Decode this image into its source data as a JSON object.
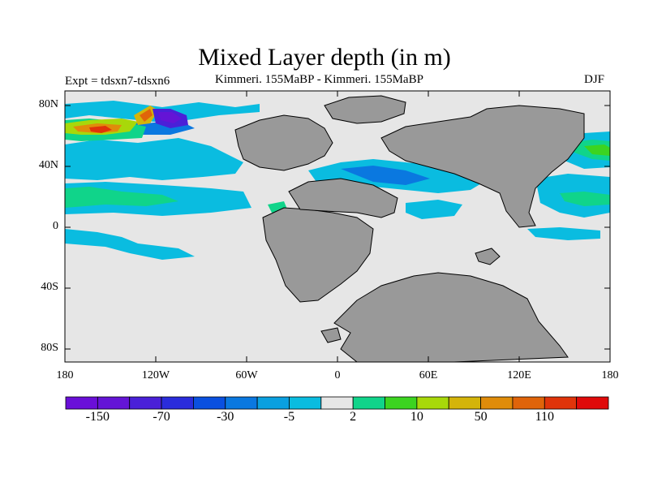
{
  "title": "Mixed Layer depth (in m)",
  "left_subtitle": "Expt = tdsxn7-tdsxn6",
  "center_subtitle": "Kimmeri. 155MaBP - Kimmeri. 155MaBP",
  "right_subtitle": "DJF",
  "y_ticks": [
    "80N",
    "40N",
    "0",
    "40S",
    "80S"
  ],
  "x_ticks": [
    "180",
    "120W",
    "60W",
    "0",
    "60E",
    "120E",
    "180"
  ],
  "colorbar": {
    "colors": [
      "#6a0fd8",
      "#6414d6",
      "#4a20d8",
      "#2a2cdc",
      "#0a50e0",
      "#0a78e0",
      "#0aa0e0",
      "#0abce0",
      "#e6e6e6",
      "#10d48a",
      "#3cd420",
      "#a8d80a",
      "#d4b40a",
      "#e08c0a",
      "#e0640a",
      "#e0340a",
      "#e00a0a"
    ],
    "labels": [
      "-150",
      "-70",
      "-30",
      "-5",
      "2",
      "10",
      "50",
      "110"
    ]
  },
  "colors": {
    "land": "#999999",
    "ocean_zero": "#e6e6e6",
    "coast": "#000000"
  }
}
